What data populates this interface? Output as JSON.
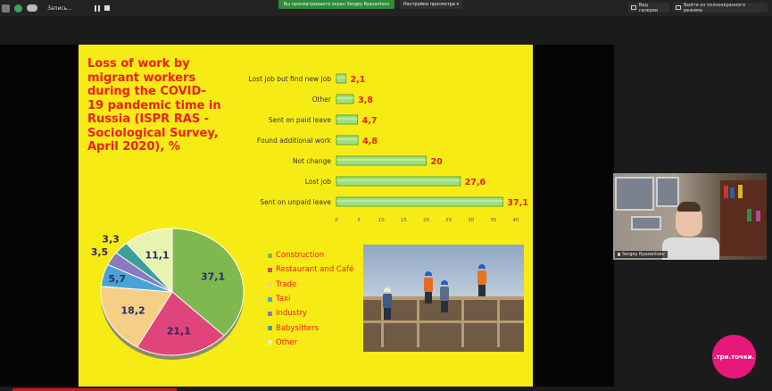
{
  "toolbar": {
    "recording_label": "Запись...",
    "share_banner": "Вы просматриваете экран Sergey Ryazantsev",
    "view_options": "Настройки просмотра",
    "gallery_label": "Вид галереи",
    "exit_fullscreen_label": "Выйти из полноэкранного режима"
  },
  "slide": {
    "title": "Loss of work by migrant workers during the COVID-19 pandemic time in Russia (ISPR RAS - Sociological Survey, April 2020), %",
    "bar_chart": {
      "type": "bar",
      "orientation": "horizontal",
      "categories": [
        "Lost job but find new job",
        "Other",
        "Sent on paid leave",
        "Found additional work",
        "Not change",
        "Lost job",
        "Sent on unpaid leave"
      ],
      "values": [
        2.1,
        3.8,
        4.7,
        4.8,
        20,
        27.6,
        37.1
      ],
      "value_labels": [
        "2,1",
        "3,8",
        "4,7",
        "4,8",
        "20",
        "27,6",
        "37,1"
      ],
      "xlim": [
        0,
        40
      ],
      "ticks": [
        0,
        5,
        10,
        15,
        20,
        25,
        30,
        35,
        40
      ],
      "bar_color": "#9fe07e"
    },
    "pie_chart": {
      "type": "pie",
      "categories": [
        "Construction",
        "Restaurant and Café",
        "Trade",
        "Taxi",
        "Industry",
        "Babysitters",
        "Other"
      ],
      "values": [
        37.1,
        21.1,
        18.2,
        5.7,
        3.5,
        3.3,
        11.1
      ],
      "value_labels": [
        "37,1",
        "21,1",
        "18,2",
        "5,7",
        "3,5",
        "3,3",
        "11,1"
      ],
      "colors": [
        "#7fb84e",
        "#e0447a",
        "#f5cf86",
        "#4aa3d6",
        "#8a7bc0",
        "#3d9e9a",
        "#e8f3b0"
      ]
    },
    "legend": [
      "Construction",
      "Restaurant and Café",
      "Trade",
      "Taxi",
      "Industry",
      "Babysitters",
      "Other"
    ]
  },
  "participant": {
    "name": "Sergey Ryazantsev"
  },
  "logo": {
    "text": ".три.точки."
  }
}
